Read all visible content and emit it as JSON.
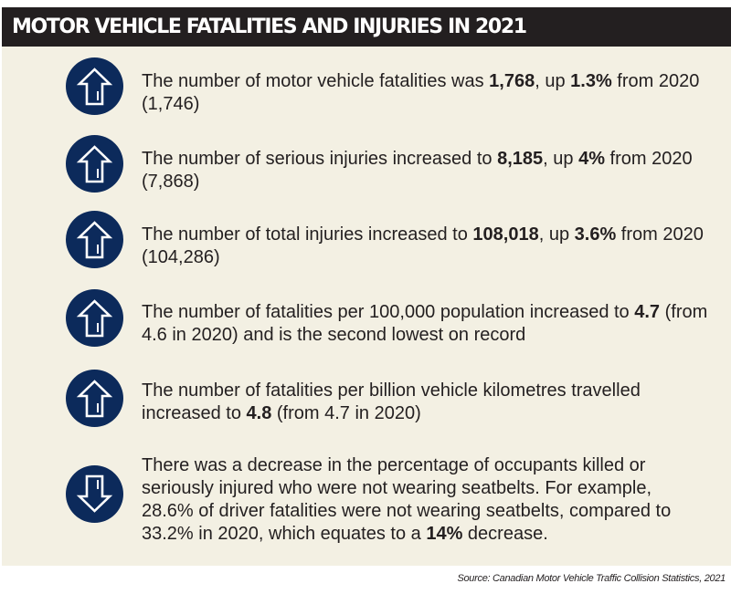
{
  "header": {
    "title": "MOTOR VEHICLE FATALITIES AND INJURIES IN 2021"
  },
  "colors": {
    "icon_fill": "#0c2a5b",
    "panel_bg": "#f3f0e3",
    "header_bg": "#231f20"
  },
  "items": [
    {
      "icon": "arrow-up-icon",
      "parts": [
        {
          "text": "The number of motor vehicle fatalities was ",
          "bold": false
        },
        {
          "text": "1,768",
          "bold": true
        },
        {
          "text": ", up ",
          "bold": false
        },
        {
          "text": "1.3%",
          "bold": true
        },
        {
          "text": " from 2020 (1,746)",
          "bold": false
        }
      ]
    },
    {
      "icon": "arrow-up-icon",
      "parts": [
        {
          "text": "The number of serious injuries increased to ",
          "bold": false
        },
        {
          "text": "8,185",
          "bold": true
        },
        {
          "text": ", up ",
          "bold": false
        },
        {
          "text": "4%",
          "bold": true
        },
        {
          "text": " from 2020 (7,868)",
          "bold": false
        }
      ]
    },
    {
      "icon": "arrow-up-icon",
      "parts": [
        {
          "text": "The number of total injuries increased to ",
          "bold": false
        },
        {
          "text": "108,018",
          "bold": true
        },
        {
          "text": ", up ",
          "bold": false
        },
        {
          "text": "3.6%",
          "bold": true
        },
        {
          "text": " from 2020 (104,286)",
          "bold": false
        }
      ]
    },
    {
      "icon": "arrow-up-icon",
      "parts": [
        {
          "text": "The number of fatalities per 100,000 population increased to ",
          "bold": false
        },
        {
          "text": "4.7",
          "bold": true
        },
        {
          "text": " (from 4.6 in 2020) and is the second lowest on record",
          "bold": false
        }
      ]
    },
    {
      "icon": "arrow-up-icon",
      "parts": [
        {
          "text": "The number of fatalities per billion vehicle kilometres travelled increased to ",
          "bold": false
        },
        {
          "text": "4.8",
          "bold": true
        },
        {
          "text": " (from 4.7 in 2020)",
          "bold": false
        }
      ]
    },
    {
      "icon": "arrow-down-icon",
      "parts": [
        {
          "text": "There was a decrease in the percentage of occupants killed or seriously injured who were not wearing seatbelts. For example, 28.6% of driver fatalities were not wearing seatbelts, compared to 33.2% in 2020, which equates to a ",
          "bold": false
        },
        {
          "text": "14%",
          "bold": true
        },
        {
          "text": " decrease.",
          "bold": false
        }
      ]
    }
  ],
  "source": "Source: Canadian Motor Vehicle Traffic Collision Statistics, 2021"
}
